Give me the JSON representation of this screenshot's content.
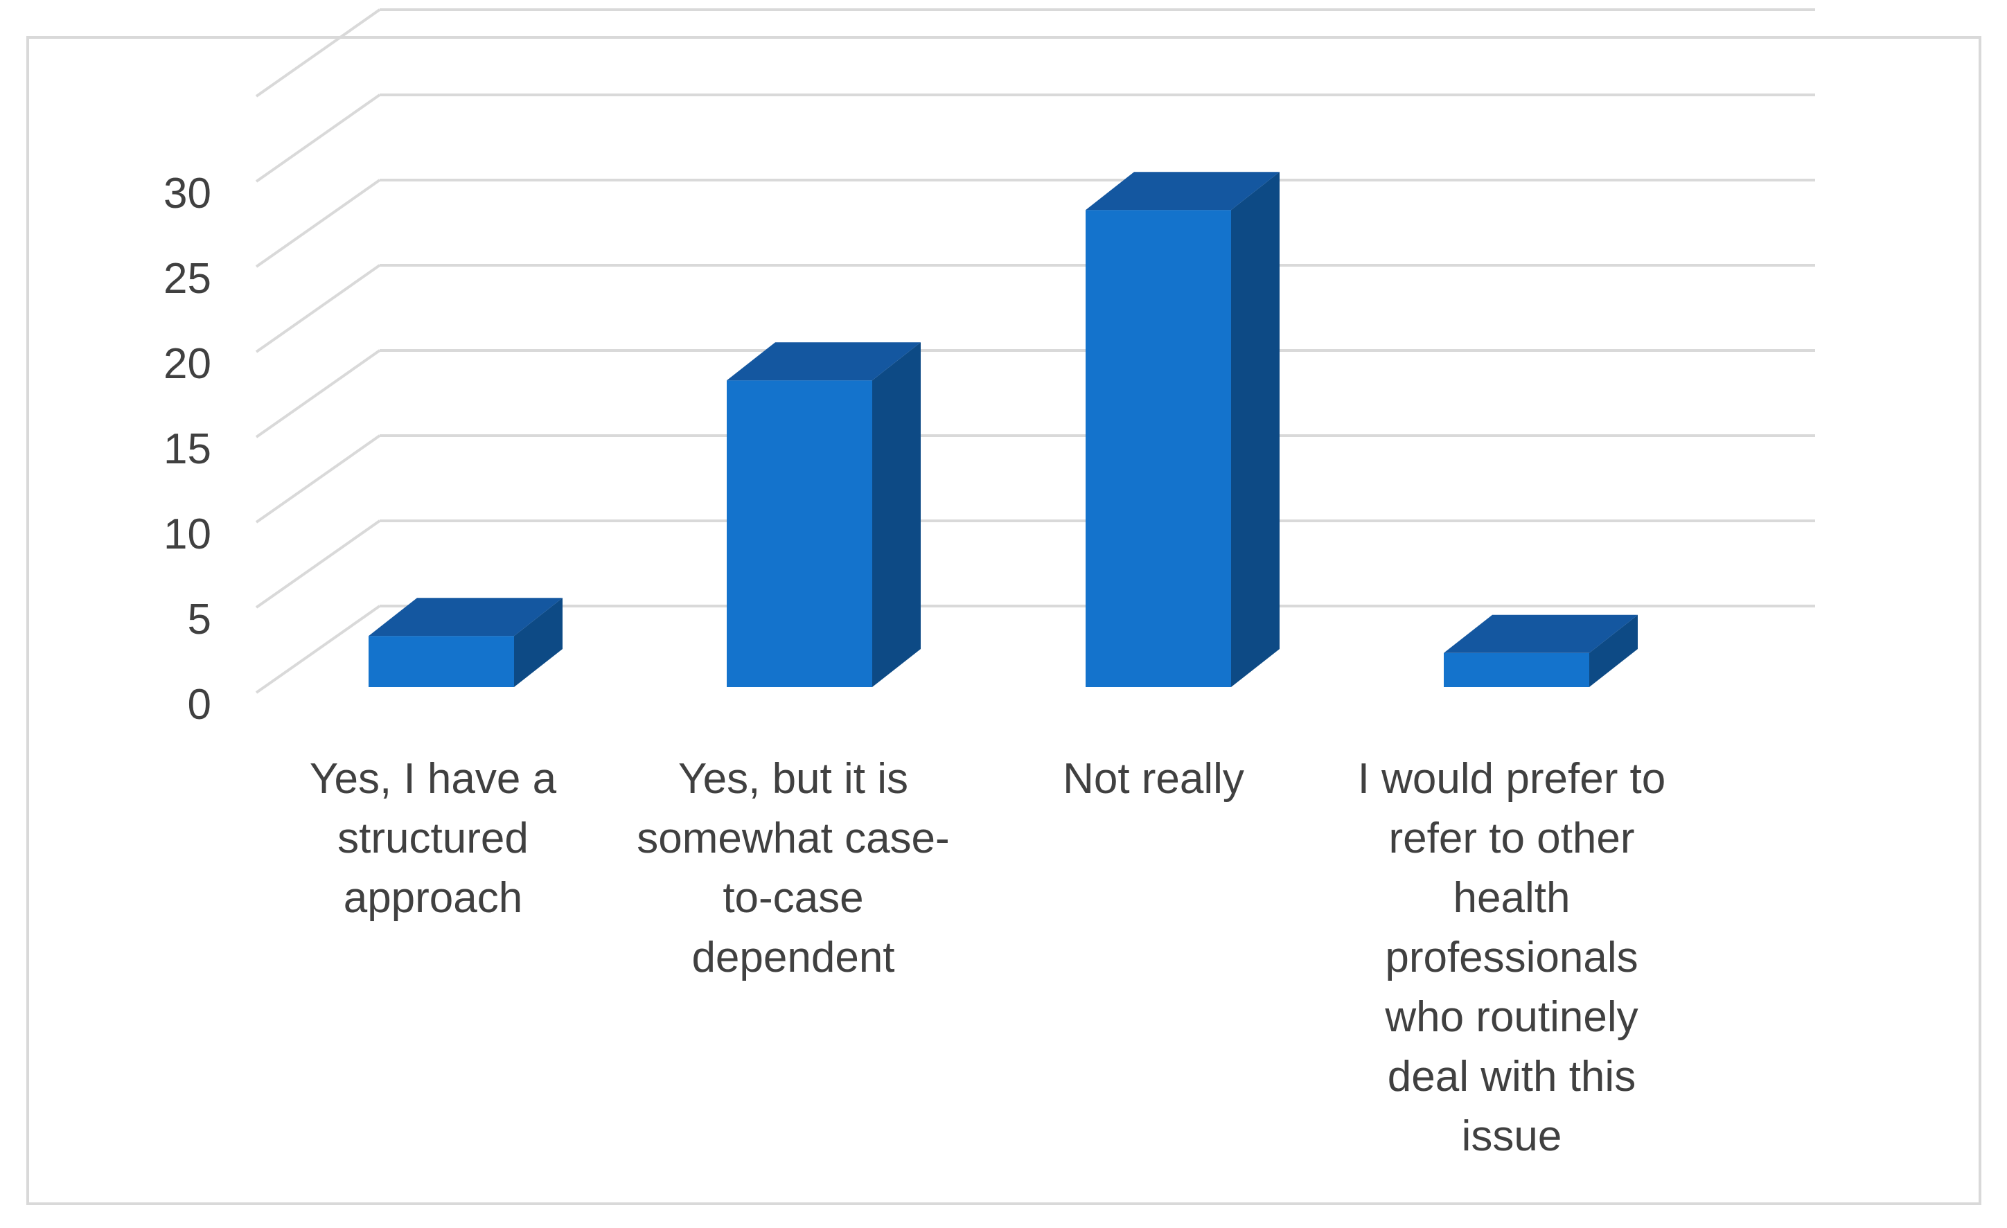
{
  "chart_data": {
    "type": "bar",
    "style": "3d-column",
    "categories": [
      "Yes, I have a structured approach",
      "Yes, but it is somewhat case-to-case dependent",
      "Not really",
      "I would prefer to refer to other health professionals who routinely deal with this issue"
    ],
    "category_label_lines": [
      [
        "Yes, I have a",
        "structured",
        "approach"
      ],
      [
        "Yes, but it is",
        "somewhat case-",
        "to-case",
        "dependent"
      ],
      [
        "Not really"
      ],
      [
        "I would prefer to",
        "refer to other",
        "health",
        "professionals",
        "who routinely",
        "deal with this",
        "issue"
      ]
    ],
    "series": [
      {
        "values": [
          3,
          18,
          28,
          2
        ]
      }
    ],
    "yticks": [
      "0",
      "5",
      "10",
      "15",
      "20",
      "25",
      "30"
    ],
    "ylim": [
      0,
      35
    ],
    "grid": true,
    "legend": "none",
    "colors": {
      "bar_front": "#1473CC",
      "bar_top": "#1457A0",
      "bar_side": "#0D4A85",
      "grid": "#d9d9d9",
      "text": "#404040"
    }
  }
}
